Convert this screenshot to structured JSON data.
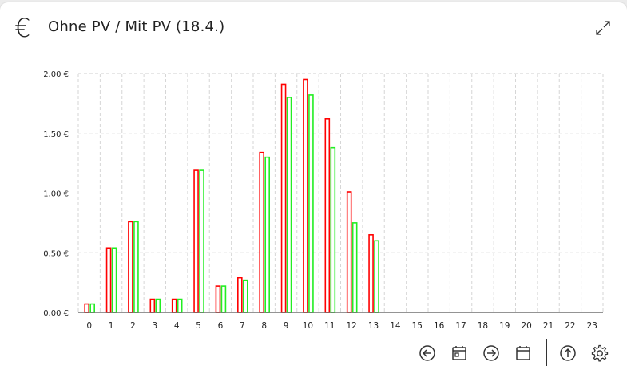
{
  "header": {
    "title": "Ohne PV / Mit PV (18.4.)",
    "icon": "euro-icon",
    "expand_icon": "expand-icon"
  },
  "chart_data": {
    "type": "bar",
    "categories": [
      "0",
      "1",
      "2",
      "3",
      "4",
      "5",
      "6",
      "7",
      "8",
      "9",
      "10",
      "11",
      "12",
      "13",
      "14",
      "15",
      "16",
      "17",
      "18",
      "19",
      "20",
      "21",
      "22",
      "23"
    ],
    "series": [
      {
        "values": [
          0.07,
          0.54,
          0.76,
          0.11,
          0.11,
          1.19,
          0.22,
          0.29,
          1.34,
          1.91,
          1.95,
          1.62,
          1.01,
          0.65,
          null,
          null,
          null,
          null,
          null,
          null,
          null,
          null,
          null,
          null
        ],
        "color": "#ff0000"
      },
      {
        "values": [
          0.07,
          0.54,
          0.76,
          0.11,
          0.11,
          1.19,
          0.22,
          0.27,
          1.3,
          1.8,
          1.82,
          1.38,
          0.75,
          0.6,
          null,
          null,
          null,
          null,
          null,
          null,
          null,
          null,
          null,
          null
        ],
        "color": "#22ee22"
      }
    ],
    "yticks": [
      "0.00 €",
      "0.50 €",
      "1.00 €",
      "1.50 €",
      "2.00 €"
    ],
    "ylim": [
      0,
      2
    ],
    "grid": true
  },
  "toolbar": {
    "icons": [
      "arrow-left-circle-icon",
      "calendar-today-icon",
      "arrow-right-circle-icon",
      "calendar-icon",
      "arrow-up-circle-icon",
      "gear-icon"
    ]
  }
}
